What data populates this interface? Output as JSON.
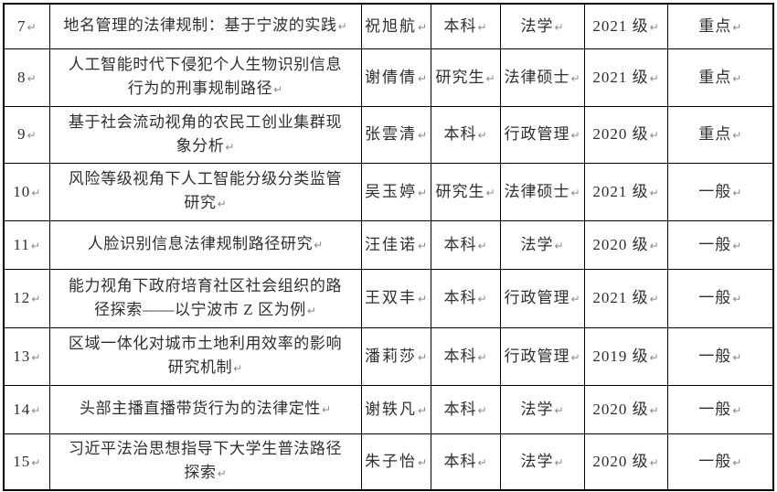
{
  "document": {
    "type": "thesis-topic-table-fragment",
    "visible_header": false
  },
  "colors": {
    "background": "#ffffff",
    "border": "#000000",
    "text": "#2f2f2f",
    "formatting_mark": "#8a8a8a"
  },
  "marks": {
    "paragraph_mark": "↵",
    "row_end_mark": "↵"
  },
  "table": {
    "rows": [
      {
        "no": "7",
        "title": "地名管理的法律规制：基于宁波的实践",
        "name": "祝旭航",
        "level": "本科",
        "major": "法学",
        "grade": "2021 级",
        "priority": "重点"
      },
      {
        "no": "8",
        "title": "人工智能时代下侵犯个人生物识别信息\n行为的刑事规制路径",
        "name": "谢倩倩",
        "level": "研究生",
        "major": "法律硕士",
        "grade": "2021 级",
        "priority": "重点"
      },
      {
        "no": "9",
        "title": "基于社会流动视角的农民工创业集群现\n象分析",
        "name": "张雲清",
        "level": "本科",
        "major": "行政管理",
        "grade": "2020 级",
        "priority": "重点"
      },
      {
        "no": "10",
        "title": "风险等级视角下人工智能分级分类监管\n研究",
        "name": "吴玉婷",
        "level": "研究生",
        "major": "法律硕士",
        "grade": "2021 级",
        "priority": "一般"
      },
      {
        "no": "11",
        "title": "人脸识别信息法律规制路径研究",
        "name": "汪佳诺",
        "level": "本科",
        "major": "法学",
        "grade": "2020 级",
        "priority": "一般"
      },
      {
        "no": "12",
        "title": "能力视角下政府培育社区社会组织的路\n径探索——以宁波市 Z 区为例",
        "name": "王双丰",
        "level": "本科",
        "major": "行政管理",
        "grade": "2021 级",
        "priority": "一般"
      },
      {
        "no": "13",
        "title": "区域一体化对城市土地利用效率的影响\n研究机制",
        "name": "潘莉莎",
        "level": "本科",
        "major": "行政管理",
        "grade": "2019 级",
        "priority": "一般"
      },
      {
        "no": "14",
        "title": "头部主播直播带货行为的法律定性",
        "name": "谢轶凡",
        "level": "本科",
        "major": "法学",
        "grade": "2020 级",
        "priority": "一般"
      },
      {
        "no": "15",
        "title": "习近平法治思想指导下大学生普法路径\n探索",
        "name": "朱子怡",
        "level": "本科",
        "major": "法学",
        "grade": "2020 级",
        "priority": "一般"
      }
    ]
  }
}
